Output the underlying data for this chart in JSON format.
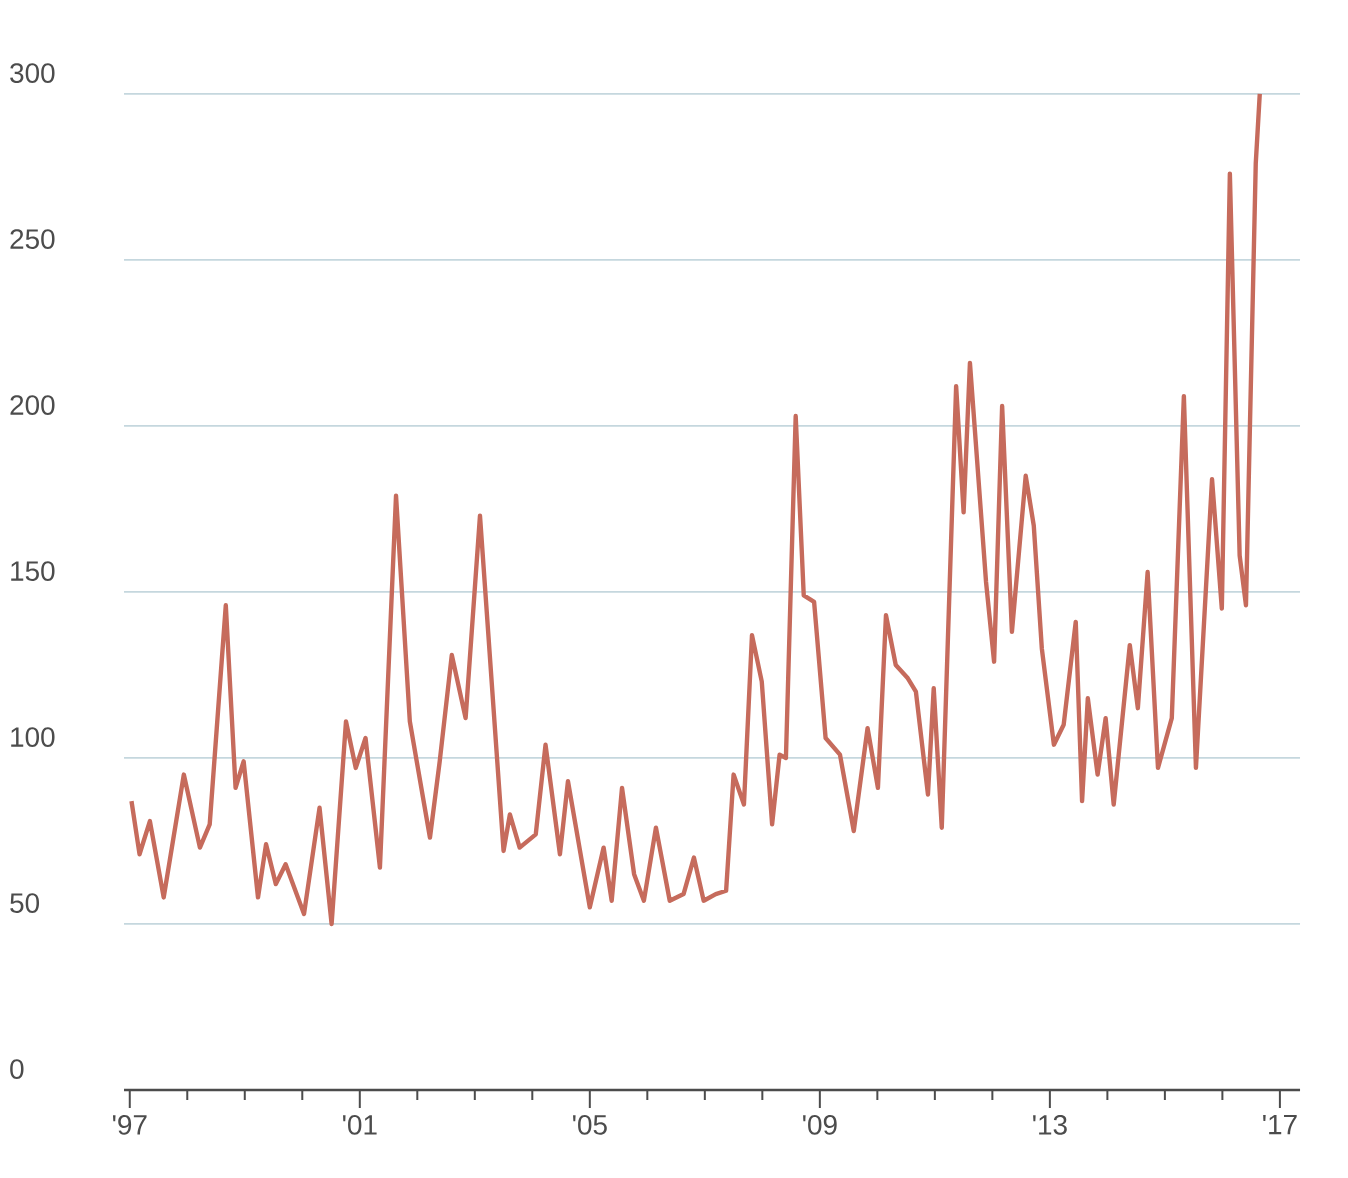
{
  "chart_data": {
    "type": "line",
    "grid": "y",
    "marker": "none",
    "line_style": "solid",
    "xlim": [
      1996.9,
      2017.35
    ],
    "ylim": [
      0,
      300
    ],
    "xticks": [
      {
        "value": 1997,
        "label": "'97"
      },
      {
        "value": 1998,
        "label": null
      },
      {
        "value": 1999,
        "label": null
      },
      {
        "value": 2000,
        "label": null
      },
      {
        "value": 2001,
        "label": "'01"
      },
      {
        "value": 2002,
        "label": null
      },
      {
        "value": 2003,
        "label": null
      },
      {
        "value": 2004,
        "label": null
      },
      {
        "value": 2005,
        "label": "'05"
      },
      {
        "value": 2006,
        "label": null
      },
      {
        "value": 2007,
        "label": null
      },
      {
        "value": 2008,
        "label": null
      },
      {
        "value": 2009,
        "label": "'09"
      },
      {
        "value": 2010,
        "label": null
      },
      {
        "value": 2011,
        "label": null
      },
      {
        "value": 2012,
        "label": null
      },
      {
        "value": 2013,
        "label": "'13"
      },
      {
        "value": 2014,
        "label": null
      },
      {
        "value": 2015,
        "label": null
      },
      {
        "value": 2016,
        "label": null
      },
      {
        "value": 2017,
        "label": "'17"
      }
    ],
    "yticks": [
      0,
      50,
      100,
      150,
      200,
      250,
      300
    ],
    "series": [
      {
        "color": "#c66b5c",
        "x": [
          1997.03,
          1997.17,
          1997.35,
          1997.59,
          1997.94,
          1998.22,
          1998.39,
          1998.67,
          1998.84,
          1998.98,
          1999.23,
          1999.37,
          1999.54,
          1999.71,
          2000.03,
          2000.3,
          2000.51,
          2000.76,
          2000.93,
          2001.1,
          2001.35,
          2001.63,
          2001.87,
          2002.22,
          2002.39,
          2002.6,
          2002.84,
          2003.09,
          2003.5,
          2003.61,
          2003.78,
          2004.06,
          2004.23,
          2004.48,
          2004.62,
          2005.0,
          2005.24,
          2005.38,
          2005.56,
          2005.77,
          2005.94,
          2006.15,
          2006.39,
          2006.63,
          2006.81,
          2006.98,
          2007.19,
          2007.37,
          2007.5,
          2007.68,
          2007.82,
          2007.99,
          2008.17,
          2008.3,
          2008.41,
          2008.58,
          2008.72,
          2008.9,
          2009.1,
          2009.35,
          2009.59,
          2009.83,
          2010.01,
          2010.15,
          2010.32,
          2010.53,
          2010.67,
          2010.88,
          2010.98,
          2011.12,
          2011.37,
          2011.5,
          2011.61,
          2011.89,
          2012.03,
          2012.17,
          2012.34,
          2012.58,
          2012.72,
          2012.86,
          2013.07,
          2013.24,
          2013.45,
          2013.56,
          2013.66,
          2013.83,
          2013.97,
          2014.11,
          2014.39,
          2014.53,
          2014.7,
          2014.88,
          2015.12,
          2015.33,
          2015.54,
          2015.82,
          2015.99,
          2016.13,
          2016.3,
          2016.41,
          2016.58,
          2016.65
        ],
        "values": [
          87,
          71,
          81,
          58,
          95,
          73,
          80,
          146,
          91,
          99,
          58,
          74,
          62,
          68,
          53,
          85,
          50,
          111,
          97,
          106,
          67,
          179,
          111,
          76,
          99,
          131,
          112,
          173,
          72,
          83,
          73,
          77,
          104,
          71,
          93,
          55,
          73,
          57,
          91,
          65,
          57,
          79,
          57,
          59,
          70,
          57,
          59,
          60,
          95,
          86,
          137,
          123,
          80,
          101,
          100,
          203,
          149,
          147,
          106,
          101,
          78,
          109,
          91,
          143,
          128,
          124,
          120,
          89,
          121,
          79,
          212,
          174,
          219,
          153,
          129,
          206,
          138,
          185,
          170,
          133,
          104,
          110,
          141,
          87,
          118,
          95,
          112,
          86,
          134,
          115,
          156,
          97,
          112,
          209,
          97,
          184,
          145,
          276,
          161,
          146,
          279,
          300
        ]
      }
    ]
  }
}
